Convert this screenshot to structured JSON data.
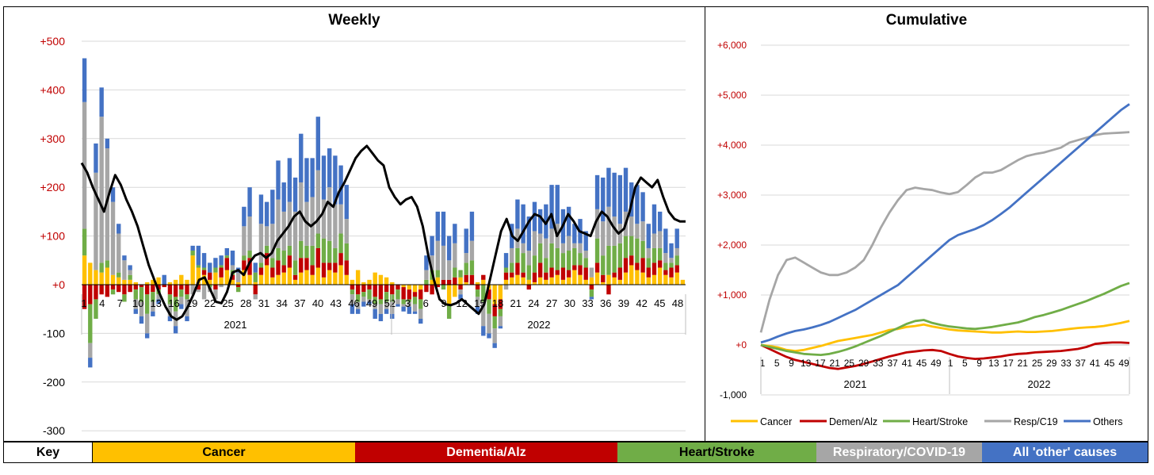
{
  "chart_data": [
    {
      "type": "bar",
      "title": "Weekly",
      "stacked": true,
      "ylim": [
        -300,
        500
      ],
      "ytick_values": [
        500,
        400,
        300,
        200,
        100,
        0,
        -100,
        -200,
        -300
      ],
      "ytick_labels": [
        "+500",
        "+400",
        "+300",
        "+200",
        "+100",
        "+0",
        "-100",
        "-200",
        "-300"
      ],
      "xtick_labels": [
        "1",
        "4",
        "7",
        "10",
        "13",
        "16",
        "19",
        "22",
        "25",
        "28",
        "31",
        "34",
        "37",
        "40",
        "43",
        "46",
        "49",
        "52",
        "3",
        "6",
        "9",
        "12",
        "15",
        "18",
        "21",
        "24",
        "27",
        "30",
        "33",
        "36",
        "39",
        "42",
        "45",
        "48"
      ],
      "year_labels": [
        "2021",
        "2022"
      ],
      "grid": true,
      "series": [
        {
          "key": "cancer",
          "values": [
            60,
            45,
            30,
            25,
            35,
            20,
            15,
            10,
            10,
            5,
            0,
            5,
            10,
            15,
            0,
            5,
            10,
            20,
            10,
            60,
            35,
            20,
            10,
            25,
            15,
            30,
            10,
            5,
            30,
            20,
            5,
            20,
            40,
            15,
            20,
            25,
            35,
            10,
            25,
            30,
            20,
            35,
            15,
            30,
            25,
            40,
            20,
            10,
            30,
            5,
            10,
            25,
            20,
            15,
            5,
            0,
            -5,
            -10,
            -15,
            -10,
            0,
            10,
            15,
            0,
            -40,
            -25,
            15,
            5,
            0,
            5,
            10,
            -10,
            -40,
            -30,
            10,
            15,
            20,
            15,
            10,
            5,
            15,
            10,
            15,
            20,
            10,
            15,
            30,
            20,
            10,
            15,
            25,
            5,
            20,
            15,
            10,
            25,
            40,
            30,
            25,
            15,
            20,
            35,
            20,
            15,
            25,
            10
          ]
        },
        {
          "key": "dementia",
          "values": [
            -50,
            -40,
            -30,
            -20,
            -25,
            -10,
            -15,
            -20,
            -15,
            -10,
            -5,
            -20,
            -15,
            -10,
            -5,
            -20,
            -25,
            -10,
            -20,
            0,
            -10,
            10,
            15,
            -10,
            20,
            25,
            10,
            -5,
            20,
            35,
            -20,
            15,
            25,
            20,
            30,
            15,
            25,
            10,
            30,
            25,
            20,
            40,
            30,
            15,
            20,
            25,
            30,
            -10,
            -20,
            -15,
            -10,
            -25,
            -30,
            -15,
            -20,
            -10,
            -25,
            -20,
            -10,
            -20,
            -15,
            -20,
            -5,
            10,
            10,
            15,
            -10,
            15,
            20,
            -10,
            10,
            -20,
            -25,
            -20,
            15,
            10,
            25,
            10,
            -10,
            20,
            30,
            15,
            20,
            10,
            25,
            15,
            10,
            20,
            25,
            -10,
            20,
            15,
            -20,
            10,
            25,
            30,
            20,
            15,
            30,
            20,
            25,
            15,
            10,
            20,
            15,
            0
          ]
        },
        {
          "key": "heart",
          "values": [
            55,
            -80,
            -40,
            20,
            15,
            -10,
            10,
            -15,
            10,
            -20,
            -30,
            -40,
            -20,
            -10,
            0,
            -20,
            -30,
            -15,
            -10,
            10,
            5,
            5,
            -5,
            10,
            5,
            5,
            10,
            -10,
            10,
            15,
            20,
            10,
            15,
            20,
            25,
            30,
            20,
            30,
            35,
            25,
            40,
            30,
            50,
            45,
            30,
            40,
            35,
            -10,
            -15,
            -10,
            -20,
            -15,
            -10,
            -20,
            -15,
            -20,
            -10,
            -5,
            -15,
            -20,
            10,
            20,
            15,
            -10,
            -30,
            20,
            15,
            25,
            30,
            -15,
            -35,
            -30,
            -25,
            -15,
            10,
            20,
            30,
            40,
            30,
            35,
            40,
            30,
            50,
            45,
            30,
            40,
            35,
            25,
            20,
            -15,
            50,
            40,
            60,
            55,
            50,
            45,
            40,
            50,
            35,
            20,
            30,
            25,
            15,
            10,
            20
          ]
        },
        {
          "key": "resp",
          "values": [
            260,
            -30,
            200,
            300,
            230,
            150,
            80,
            40,
            10,
            -20,
            -30,
            -40,
            -20,
            -10,
            0,
            -25,
            -30,
            -15,
            -35,
            -20,
            -5,
            -30,
            -10,
            -20,
            -5,
            0,
            10,
            20,
            60,
            70,
            -10,
            80,
            40,
            70,
            100,
            80,
            90,
            100,
            120,
            90,
            100,
            130,
            80,
            110,
            90,
            60,
            50,
            -20,
            -15,
            -10,
            -5,
            -10,
            -20,
            -15,
            -25,
            -10,
            -5,
            -10,
            -15,
            -20,
            20,
            30,
            60,
            70,
            40,
            50,
            -10,
            20,
            40,
            -20,
            -50,
            -40,
            -30,
            -20,
            -10,
            30,
            40,
            20,
            30,
            50,
            20,
            40,
            30,
            50,
            20,
            30,
            10,
            20,
            15,
            20,
            60,
            70,
            80,
            60,
            40,
            50,
            40,
            30,
            40,
            20,
            30,
            35,
            20,
            10,
            15
          ]
        },
        {
          "key": "other",
          "values": [
            90,
            -20,
            60,
            60,
            20,
            30,
            20,
            10,
            10,
            -10,
            -15,
            -10,
            -10,
            -10,
            20,
            -10,
            -15,
            -10,
            -10,
            10,
            40,
            30,
            20,
            20,
            20,
            15,
            30,
            10,
            40,
            60,
            20,
            60,
            50,
            70,
            80,
            60,
            90,
            70,
            100,
            90,
            80,
            110,
            90,
            80,
            100,
            80,
            70,
            -20,
            -10,
            -10,
            -5,
            -20,
            -15,
            -10,
            -10,
            -5,
            -10,
            -15,
            -5,
            -10,
            30,
            40,
            60,
            70,
            50,
            40,
            -10,
            50,
            60,
            -15,
            -20,
            -10,
            -10,
            -5,
            30,
            50,
            60,
            80,
            70,
            60,
            50,
            70,
            90,
            80,
            70,
            60,
            40,
            50,
            40,
            -5,
            70,
            90,
            80,
            90,
            100,
            90,
            70,
            80,
            60,
            50,
            60,
            40,
            50,
            30,
            40
          ]
        }
      ],
      "line": {
        "key": "average",
        "values": [
          250,
          230,
          200,
          175,
          150,
          190,
          225,
          205,
          175,
          150,
          120,
          80,
          40,
          10,
          -20,
          -45,
          -65,
          -72,
          -65,
          -45,
          -20,
          10,
          15,
          -10,
          -35,
          -38,
          -15,
          25,
          30,
          20,
          45,
          60,
          65,
          55,
          65,
          90,
          105,
          120,
          140,
          150,
          130,
          120,
          130,
          145,
          170,
          160,
          190,
          210,
          235,
          260,
          275,
          285,
          270,
          255,
          245,
          200,
          180,
          165,
          175,
          180,
          160,
          120,
          60,
          10,
          -30,
          -40,
          -42,
          -38,
          -30,
          -40,
          -50,
          -60,
          -40,
          10,
          60,
          110,
          135,
          100,
          90,
          110,
          130,
          145,
          140,
          125,
          145,
          100,
          120,
          145,
          130,
          110,
          105,
          100,
          130,
          150,
          140,
          120,
          105,
          115,
          150,
          200,
          220,
          210,
          200,
          215,
          180,
          150,
          135,
          130,
          130
        ]
      }
    },
    {
      "type": "line",
      "title": "Cumulative",
      "ylim": [
        -1000,
        6000
      ],
      "ytick_values": [
        6000,
        5000,
        4000,
        3000,
        2000,
        1000,
        0,
        -1000
      ],
      "ytick_labels": [
        "+6,000",
        "+5,000",
        "+4,000",
        "+3,000",
        "+2,000",
        "+1,000",
        "+0",
        "-1,000"
      ],
      "xtick_labels": [
        "1",
        "5",
        "9",
        "13",
        "17",
        "21",
        "25",
        "29",
        "33",
        "37",
        "41",
        "45",
        "49",
        "1",
        "5",
        "9",
        "13",
        "17",
        "21",
        "25",
        "29",
        "33",
        "37",
        "41",
        "45",
        "49"
      ],
      "year_labels": [
        "2021",
        "2022"
      ],
      "grid": true,
      "legend_position": "bottom",
      "series": [
        {
          "name": "Cancer",
          "key": "cancer",
          "values": [
            0,
            -20,
            -50,
            -100,
            -120,
            -100,
            -60,
            -20,
            30,
            80,
            110,
            140,
            170,
            200,
            250,
            300,
            320,
            360,
            380,
            410,
            370,
            340,
            310,
            290,
            280,
            270,
            260,
            250,
            250,
            260,
            270,
            260,
            260,
            270,
            280,
            300,
            320,
            340,
            350,
            360,
            380,
            410,
            440,
            480
          ]
        },
        {
          "name": "Demen/Alz",
          "key": "dementia",
          "values": [
            0,
            -80,
            -160,
            -240,
            -300,
            -340,
            -380,
            -420,
            -460,
            -480,
            -450,
            -420,
            -380,
            -330,
            -280,
            -230,
            -190,
            -150,
            -130,
            -110,
            -100,
            -120,
            -180,
            -230,
            -260,
            -280,
            -270,
            -250,
            -230,
            -200,
            -180,
            -170,
            -150,
            -140,
            -130,
            -120,
            -100,
            -80,
            -40,
            20,
            40,
            50,
            50,
            40
          ]
        },
        {
          "name": "Heart/Stroke",
          "key": "heart",
          "values": [
            0,
            -40,
            -80,
            -120,
            -150,
            -180,
            -190,
            -200,
            -180,
            -140,
            -90,
            -30,
            40,
            110,
            180,
            260,
            340,
            420,
            480,
            500,
            440,
            400,
            370,
            350,
            330,
            320,
            340,
            360,
            390,
            420,
            450,
            500,
            560,
            600,
            650,
            700,
            760,
            820,
            880,
            950,
            1020,
            1100,
            1180,
            1240
          ]
        },
        {
          "name": "Resp/C19",
          "key": "resp",
          "values": [
            250,
            900,
            1400,
            1700,
            1750,
            1650,
            1550,
            1450,
            1400,
            1400,
            1450,
            1550,
            1700,
            2000,
            2350,
            2650,
            2900,
            3100,
            3150,
            3120,
            3100,
            3050,
            3020,
            3060,
            3200,
            3350,
            3450,
            3450,
            3500,
            3600,
            3700,
            3780,
            3820,
            3850,
            3900,
            3950,
            4050,
            4100,
            4150,
            4200,
            4230,
            4240,
            4250,
            4260
          ]
        },
        {
          "name": "Others",
          "key": "other",
          "values": [
            50,
            100,
            170,
            230,
            280,
            310,
            350,
            400,
            460,
            540,
            620,
            700,
            800,
            900,
            1000,
            1100,
            1200,
            1350,
            1500,
            1650,
            1800,
            1950,
            2100,
            2200,
            2260,
            2320,
            2400,
            2500,
            2620,
            2750,
            2900,
            3050,
            3200,
            3350,
            3500,
            3650,
            3800,
            3950,
            4100,
            4250,
            4400,
            4550,
            4700,
            4820
          ]
        }
      ]
    }
  ],
  "colors": {
    "cancer": "#ffc000",
    "dementia": "#c00000",
    "heart": "#70ad47",
    "resp": "#a6a6a6",
    "other": "#4472c4",
    "average": "#000000",
    "tick_label": "#c00000"
  },
  "key": {
    "label": "Key",
    "cancer": "Cancer",
    "dementia": "Dementia/Alz",
    "heart": "Heart/Stroke",
    "resp": "Respiratory/COVID-19",
    "other": "All 'other' causes"
  }
}
